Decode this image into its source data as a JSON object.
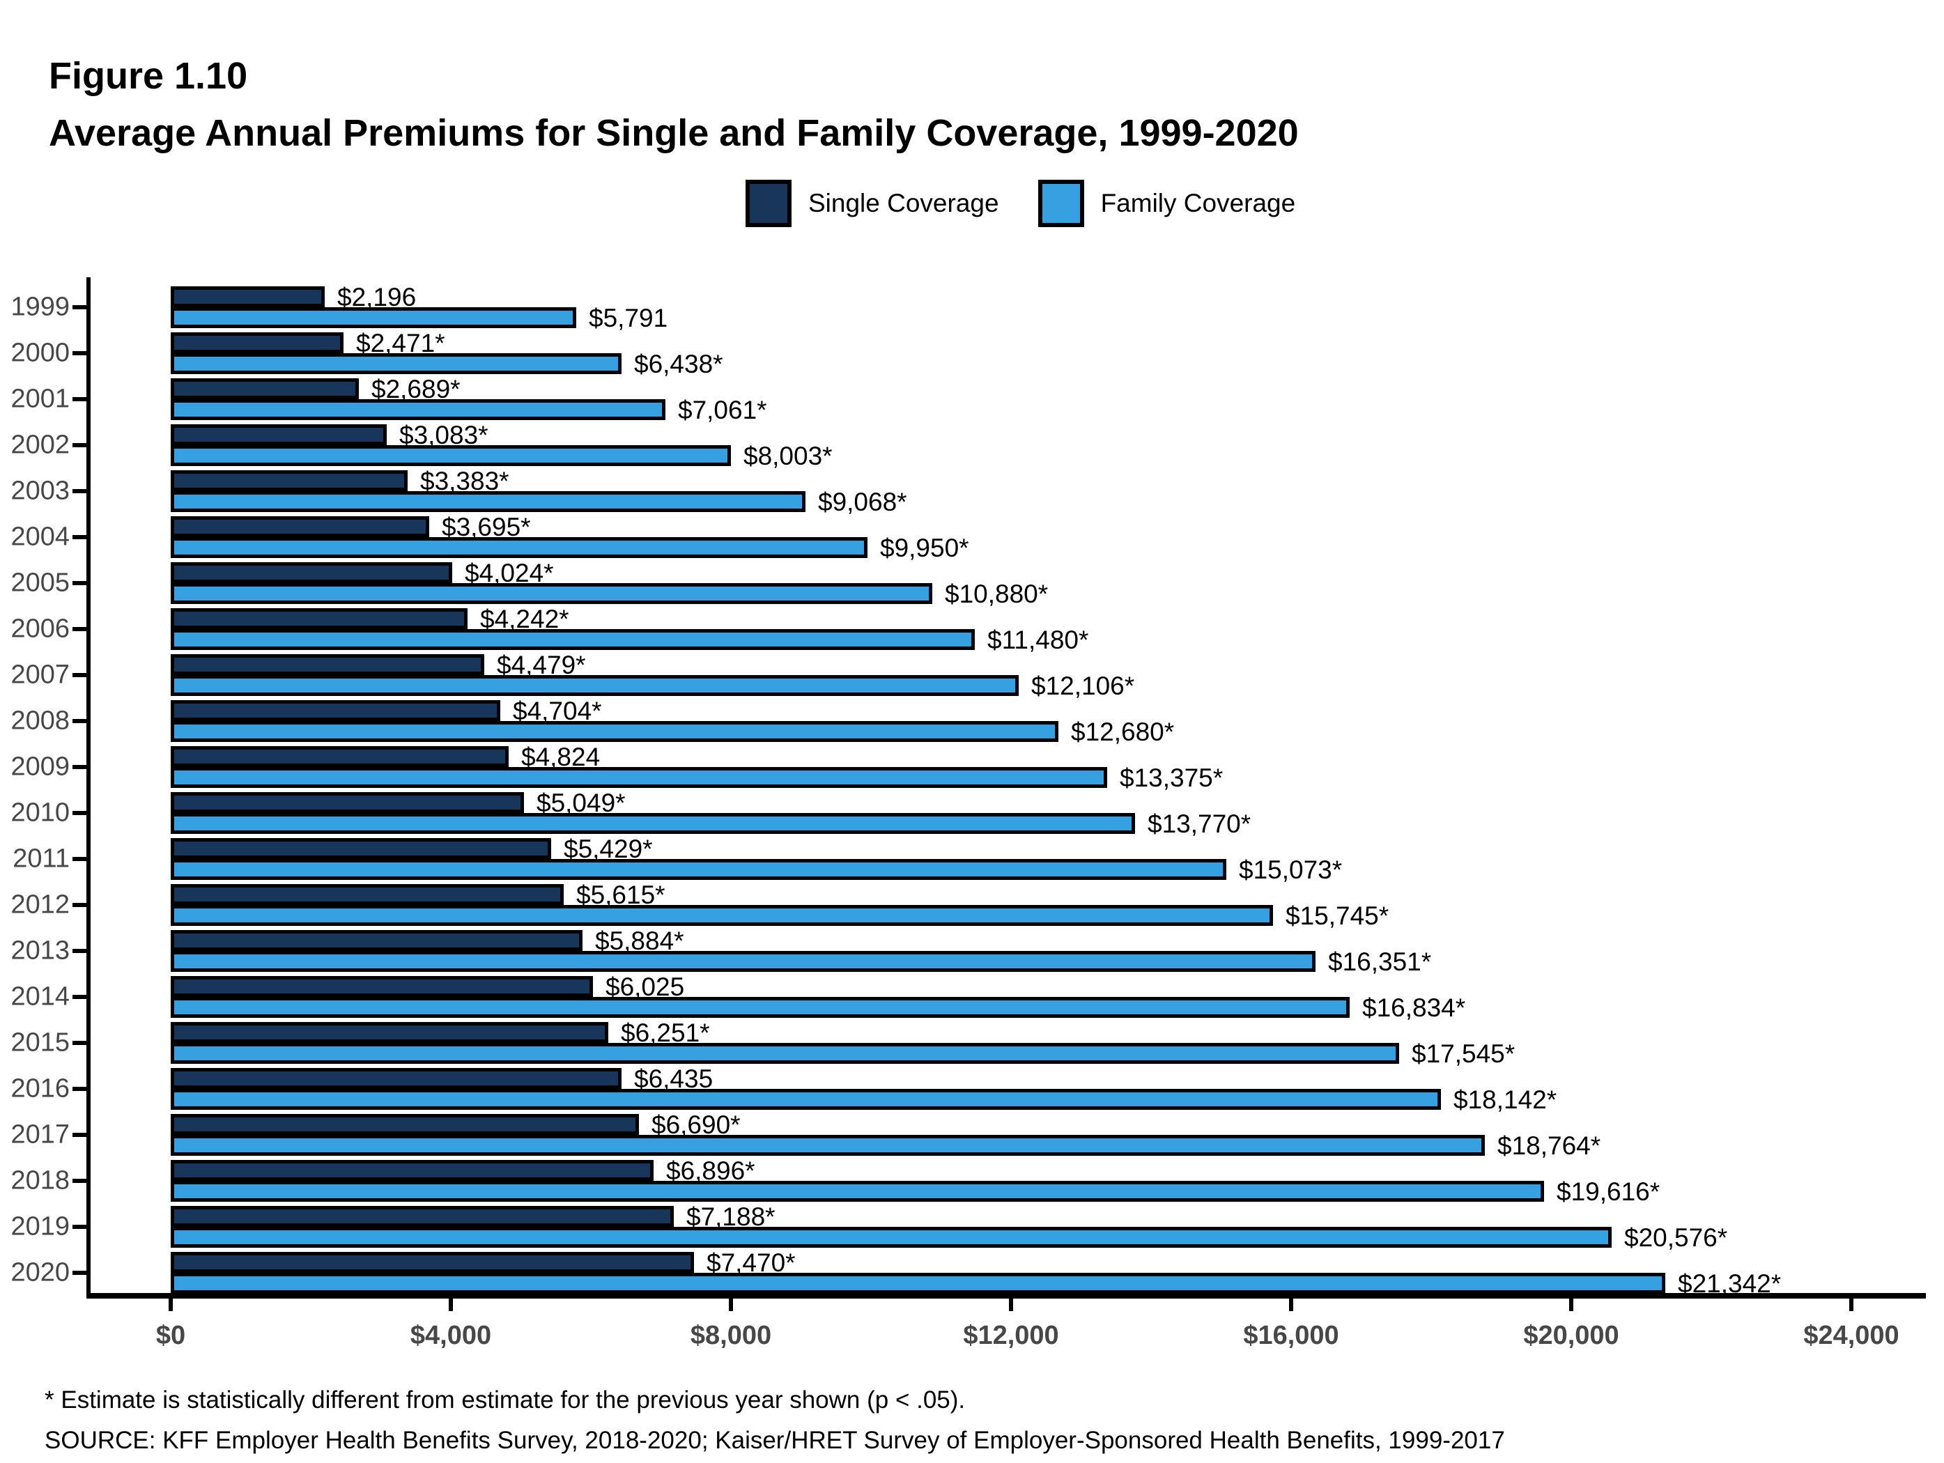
{
  "figure": {
    "label": "Figure 1.10",
    "title": "Average Annual Premiums for Single and Family Coverage, 1999-2020"
  },
  "legend": [
    {
      "label": "Single Coverage",
      "color": "#17365A"
    },
    {
      "label": "Family Coverage",
      "color": "#35A1E0"
    }
  ],
  "chart_data": {
    "type": "bar",
    "orientation": "horizontal",
    "title": "Average Annual Premiums for Single and Family Coverage, 1999-2020",
    "categories": [
      1999,
      2000,
      2001,
      2002,
      2003,
      2004,
      2005,
      2006,
      2007,
      2008,
      2009,
      2010,
      2011,
      2012,
      2013,
      2014,
      2015,
      2016,
      2017,
      2018,
      2019,
      2020
    ],
    "series": [
      {
        "name": "Single Coverage",
        "color": "#17365A",
        "values": [
          2196,
          2471,
          2689,
          3083,
          3383,
          3695,
          4024,
          4242,
          4479,
          4704,
          4824,
          5049,
          5429,
          5615,
          5884,
          6025,
          6251,
          6435,
          6690,
          6896,
          7188,
          7470
        ],
        "labels": [
          "$2,196",
          "$2,471*",
          "$2,689*",
          "$3,083*",
          "$3,383*",
          "$3,695*",
          "$4,024*",
          "$4,242*",
          "$4,479*",
          "$4,704*",
          "$4,824",
          "$5,049*",
          "$5,429*",
          "$5,615*",
          "$5,884*",
          "$6,025",
          "$6,251*",
          "$6,435",
          "$6,690*",
          "$6,896*",
          "$7,188*",
          "$7,470*"
        ]
      },
      {
        "name": "Family Coverage",
        "color": "#35A1E0",
        "values": [
          5791,
          6438,
          7061,
          8003,
          9068,
          9950,
          10880,
          11480,
          12106,
          12680,
          13375,
          13770,
          15073,
          15745,
          16351,
          16834,
          17545,
          18142,
          18764,
          19616,
          20576,
          21342
        ],
        "labels": [
          "$5,791",
          "$6,438*",
          "$7,061*",
          "$8,003*",
          "$9,068*",
          "$9,950*",
          "$10,880*",
          "$11,480*",
          "$12,106*",
          "$12,680*",
          "$13,375*",
          "$13,770*",
          "$15,073*",
          "$15,745*",
          "$16,351*",
          "$16,834*",
          "$17,545*",
          "$18,142*",
          "$18,764*",
          "$19,616*",
          "$20,576*",
          "$21,342*"
        ]
      }
    ],
    "xlabel": "",
    "ylabel": "",
    "xlim": [
      0,
      24000
    ],
    "x_ticks": {
      "values": [
        0,
        4000,
        8000,
        12000,
        16000,
        20000,
        24000
      ],
      "labels": [
        "$0",
        "$4,000",
        "$8,000",
        "$12,000",
        "$16,000",
        "$20,000",
        "$24,000"
      ]
    },
    "grid": false,
    "legend_position": "top",
    "bar_outline_color": "#000000"
  },
  "footnotes": {
    "significance": "* Estimate is statistically different from estimate for the previous year shown (p < .05).",
    "source": "SOURCE: KFF Employer Health Benefits Survey, 2018-2020; Kaiser/HRET Survey of Employer-Sponsored Health Benefits, 1999-2017"
  }
}
